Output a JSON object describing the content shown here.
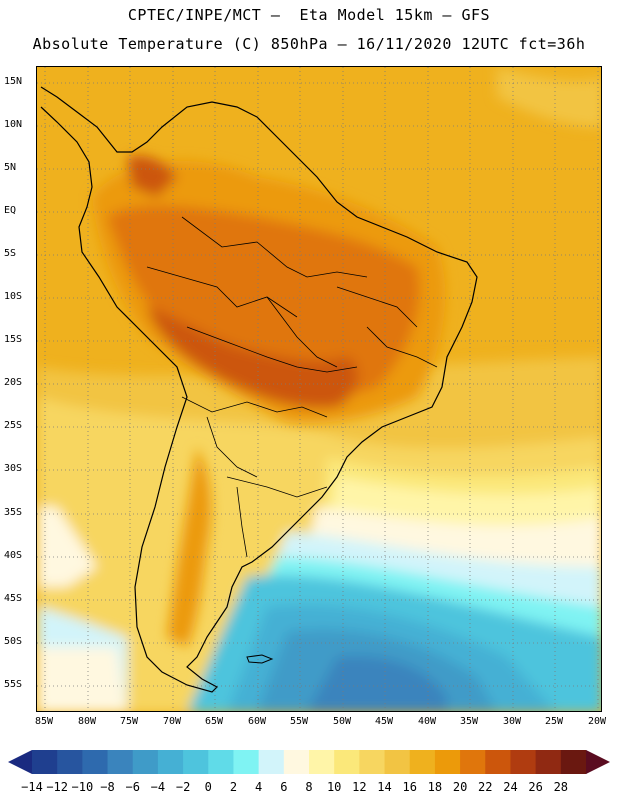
{
  "title_line1": "CPTEC/INPE/MCT –  Eta Model 15km – GFS",
  "title_line2": "Absolute Temperature (C) 850hPa – 16/11/2020 12UTC fct=36h",
  "lat_labels": [
    "15N",
    "10N",
    "5N",
    "EQ",
    "5S",
    "10S",
    "15S",
    "20S",
    "25S",
    "30S",
    "35S",
    "40S",
    "45S",
    "50S",
    "55S"
  ],
  "lon_labels": [
    "85W",
    "80W",
    "75W",
    "70W",
    "65W",
    "60W",
    "55W",
    "50W",
    "45W",
    "40W",
    "35W",
    "30W",
    "25W",
    "20W"
  ],
  "colorbar": {
    "labels": [
      "-14",
      "-12",
      "-10",
      "-8",
      "-6",
      "-4",
      "-2",
      "0",
      "2",
      "4",
      "6",
      "8",
      "10",
      "12",
      "14",
      "16",
      "18",
      "20",
      "22",
      "24",
      "26",
      "28"
    ],
    "colors": [
      "#1f3f8f",
      "#27559f",
      "#2e6aae",
      "#3a84bd",
      "#3f9bc8",
      "#45b0d4",
      "#4ec4dd",
      "#60dbe8",
      "#7ff3f3",
      "#d2f4fa",
      "#fff8e0",
      "#fff5a8",
      "#fbe87a",
      "#f7d660",
      "#f2c443",
      "#efb11e",
      "#ec9a0a",
      "#e0760c",
      "#cc560c",
      "#b03c10",
      "#902912",
      "#6a1810"
    ],
    "out_low": "#1a2a80",
    "out_high": "#5a0c20"
  }
}
